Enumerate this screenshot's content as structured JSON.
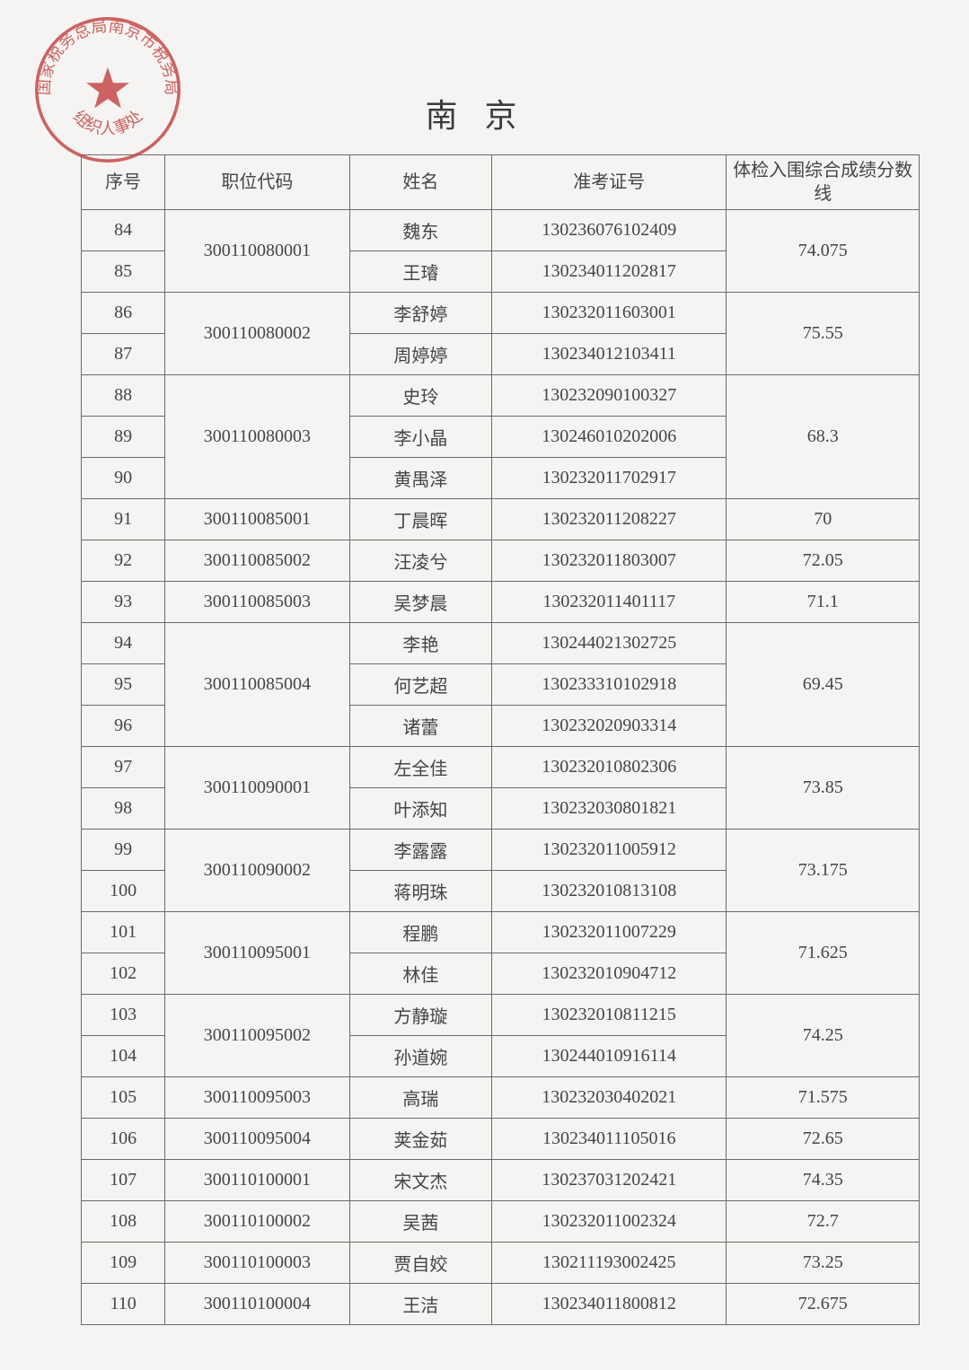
{
  "title": "南京",
  "stamp": {
    "outer_text": "国家税务总局南京市税务局",
    "inner_text": "组织人事处",
    "color": "#c54a4a"
  },
  "columns": [
    "序号",
    "职位代码",
    "姓名",
    "准考证号",
    "体检入围综合成绩分数线"
  ],
  "groups": [
    {
      "code": "300110080001",
      "score": "74.075",
      "rows": [
        {
          "seq": "84",
          "name": "魏东",
          "exam": "130236076102409"
        },
        {
          "seq": "85",
          "name": "王璿",
          "exam": "130234011202817"
        }
      ]
    },
    {
      "code": "300110080002",
      "score": "75.55",
      "rows": [
        {
          "seq": "86",
          "name": "李舒婷",
          "exam": "130232011603001"
        },
        {
          "seq": "87",
          "name": "周婷婷",
          "exam": "130234012103411"
        }
      ]
    },
    {
      "code": "300110080003",
      "score": "68.3",
      "rows": [
        {
          "seq": "88",
          "name": "史玲",
          "exam": "130232090100327"
        },
        {
          "seq": "89",
          "name": "李小晶",
          "exam": "130246010202006"
        },
        {
          "seq": "90",
          "name": "黄禺泽",
          "exam": "130232011702917"
        }
      ]
    },
    {
      "code": "300110085001",
      "score": "70",
      "rows": [
        {
          "seq": "91",
          "name": "丁晨晖",
          "exam": "130232011208227"
        }
      ]
    },
    {
      "code": "300110085002",
      "score": "72.05",
      "rows": [
        {
          "seq": "92",
          "name": "汪凌兮",
          "exam": "130232011803007"
        }
      ]
    },
    {
      "code": "300110085003",
      "score": "71.1",
      "rows": [
        {
          "seq": "93",
          "name": "吴梦晨",
          "exam": "130232011401117"
        }
      ]
    },
    {
      "code": "300110085004",
      "score": "69.45",
      "rows": [
        {
          "seq": "94",
          "name": "李艳",
          "exam": "130244021302725"
        },
        {
          "seq": "95",
          "name": "何艺超",
          "exam": "130233310102918"
        },
        {
          "seq": "96",
          "name": "诸蕾",
          "exam": "130232020903314"
        }
      ]
    },
    {
      "code": "300110090001",
      "score": "73.85",
      "rows": [
        {
          "seq": "97",
          "name": "左全佳",
          "exam": "130232010802306"
        },
        {
          "seq": "98",
          "name": "叶添知",
          "exam": "130232030801821"
        }
      ]
    },
    {
      "code": "300110090002",
      "score": "73.175",
      "rows": [
        {
          "seq": "99",
          "name": "李露露",
          "exam": "130232011005912"
        },
        {
          "seq": "100",
          "name": "蒋明珠",
          "exam": "130232010813108"
        }
      ]
    },
    {
      "code": "300110095001",
      "score": "71.625",
      "rows": [
        {
          "seq": "101",
          "name": "程鹏",
          "exam": "130232011007229"
        },
        {
          "seq": "102",
          "name": "林佳",
          "exam": "130232010904712"
        }
      ]
    },
    {
      "code": "300110095002",
      "score": "74.25",
      "rows": [
        {
          "seq": "103",
          "name": "方静璇",
          "exam": "130232010811215"
        },
        {
          "seq": "104",
          "name": "孙道婉",
          "exam": "130244010916114"
        }
      ]
    },
    {
      "code": "300110095003",
      "score": "71.575",
      "rows": [
        {
          "seq": "105",
          "name": "高瑞",
          "exam": "130232030402021"
        }
      ]
    },
    {
      "code": "300110095004",
      "score": "72.65",
      "rows": [
        {
          "seq": "106",
          "name": "荚金茹",
          "exam": "130234011105016"
        }
      ]
    },
    {
      "code": "300110100001",
      "score": "74.35",
      "rows": [
        {
          "seq": "107",
          "name": "宋文杰",
          "exam": "130237031202421"
        }
      ]
    },
    {
      "code": "300110100002",
      "score": "72.7",
      "rows": [
        {
          "seq": "108",
          "name": "吴茜",
          "exam": "130232011002324"
        }
      ]
    },
    {
      "code": "300110100003",
      "score": "73.25",
      "rows": [
        {
          "seq": "109",
          "name": "贾自姣",
          "exam": "130211193002425"
        }
      ]
    },
    {
      "code": "300110100004",
      "score": "72.675",
      "rows": [
        {
          "seq": "110",
          "name": "王洁",
          "exam": "130234011800812"
        }
      ]
    }
  ]
}
